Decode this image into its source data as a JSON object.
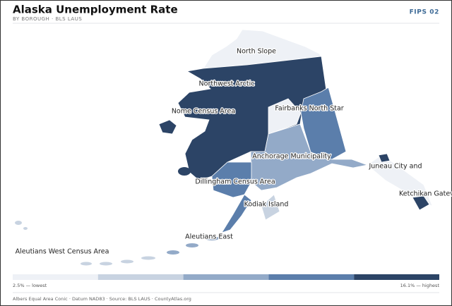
{
  "header": {
    "title": "Alaska Unemployment Rate",
    "subtitle": "BY BOROUGH · BLS LAUS",
    "badge": "FIPS 02"
  },
  "map": {
    "labels": [
      "North Slope",
      "Northwest Arctic",
      "Nome Census Area",
      "Fairbanks North Star",
      "Anchorage Municipality",
      "Juneau City and",
      "Ketchikan Gatev",
      "Dillingham Census Area",
      "Kodiak Island",
      "Aleutians East",
      "Aleutians West Census Area"
    ]
  },
  "legend": {
    "colors": [
      "#eef1f6",
      "#c8d3e1",
      "#93aac8",
      "#5b7eab",
      "#2c4466"
    ],
    "min_label": "2.5% — lowest",
    "max_label": "16.1% — highest"
  },
  "footer": "Albers Equal Area Conic · Datum NAD83 · Source: BLS LAUS · CountyAtlas.org"
}
